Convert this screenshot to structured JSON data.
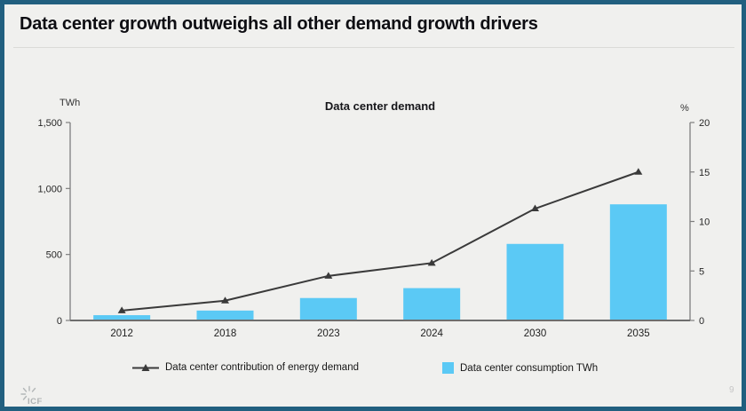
{
  "slide": {
    "title": "Data center growth outweighs all other demand growth drivers",
    "page_number": "9",
    "logo_text": "ICF"
  },
  "chart": {
    "title": "Data center demand",
    "left_axis_unit": "TWh",
    "right_axis_unit": "%"
  },
  "colors": {
    "bar": "#5BC9F5",
    "line": "#3A3A3A",
    "border": "#215F7F",
    "background": "#F0F0EE",
    "axis": "#7F7F7F",
    "baseline": "#6E6E6E",
    "tick_text": "#262626",
    "muted_logo": "#B3B7B8"
  },
  "chart_data": {
    "type": "combo-bar-line",
    "title": "Data center demand",
    "categories": [
      "2012",
      "2018",
      "2023",
      "2024",
      "2030",
      "2035"
    ],
    "series": [
      {
        "name": "Data center consumption TWh",
        "type": "bar",
        "axis": "left",
        "unit": "TWh",
        "values": [
          40,
          75,
          170,
          245,
          580,
          880
        ]
      },
      {
        "name": "Data center contribution of energy demand",
        "type": "line",
        "axis": "right",
        "unit": "%",
        "values": [
          1,
          2,
          4.5,
          5.8,
          11.3,
          15
        ]
      }
    ],
    "left_axis": {
      "label": "TWh",
      "min": 0,
      "max": 1500,
      "tick_values": [
        0,
        500,
        1000,
        1500
      ],
      "tick_labels": [
        "0",
        "500",
        "1,000",
        "1,500"
      ]
    },
    "right_axis": {
      "label": "%",
      "min": 0,
      "max": 20,
      "tick_values": [
        0,
        5,
        10,
        15,
        20
      ],
      "tick_labels": [
        "0",
        "5",
        "10",
        "15",
        "20"
      ]
    },
    "legend_position": "bottom",
    "grid": false
  }
}
